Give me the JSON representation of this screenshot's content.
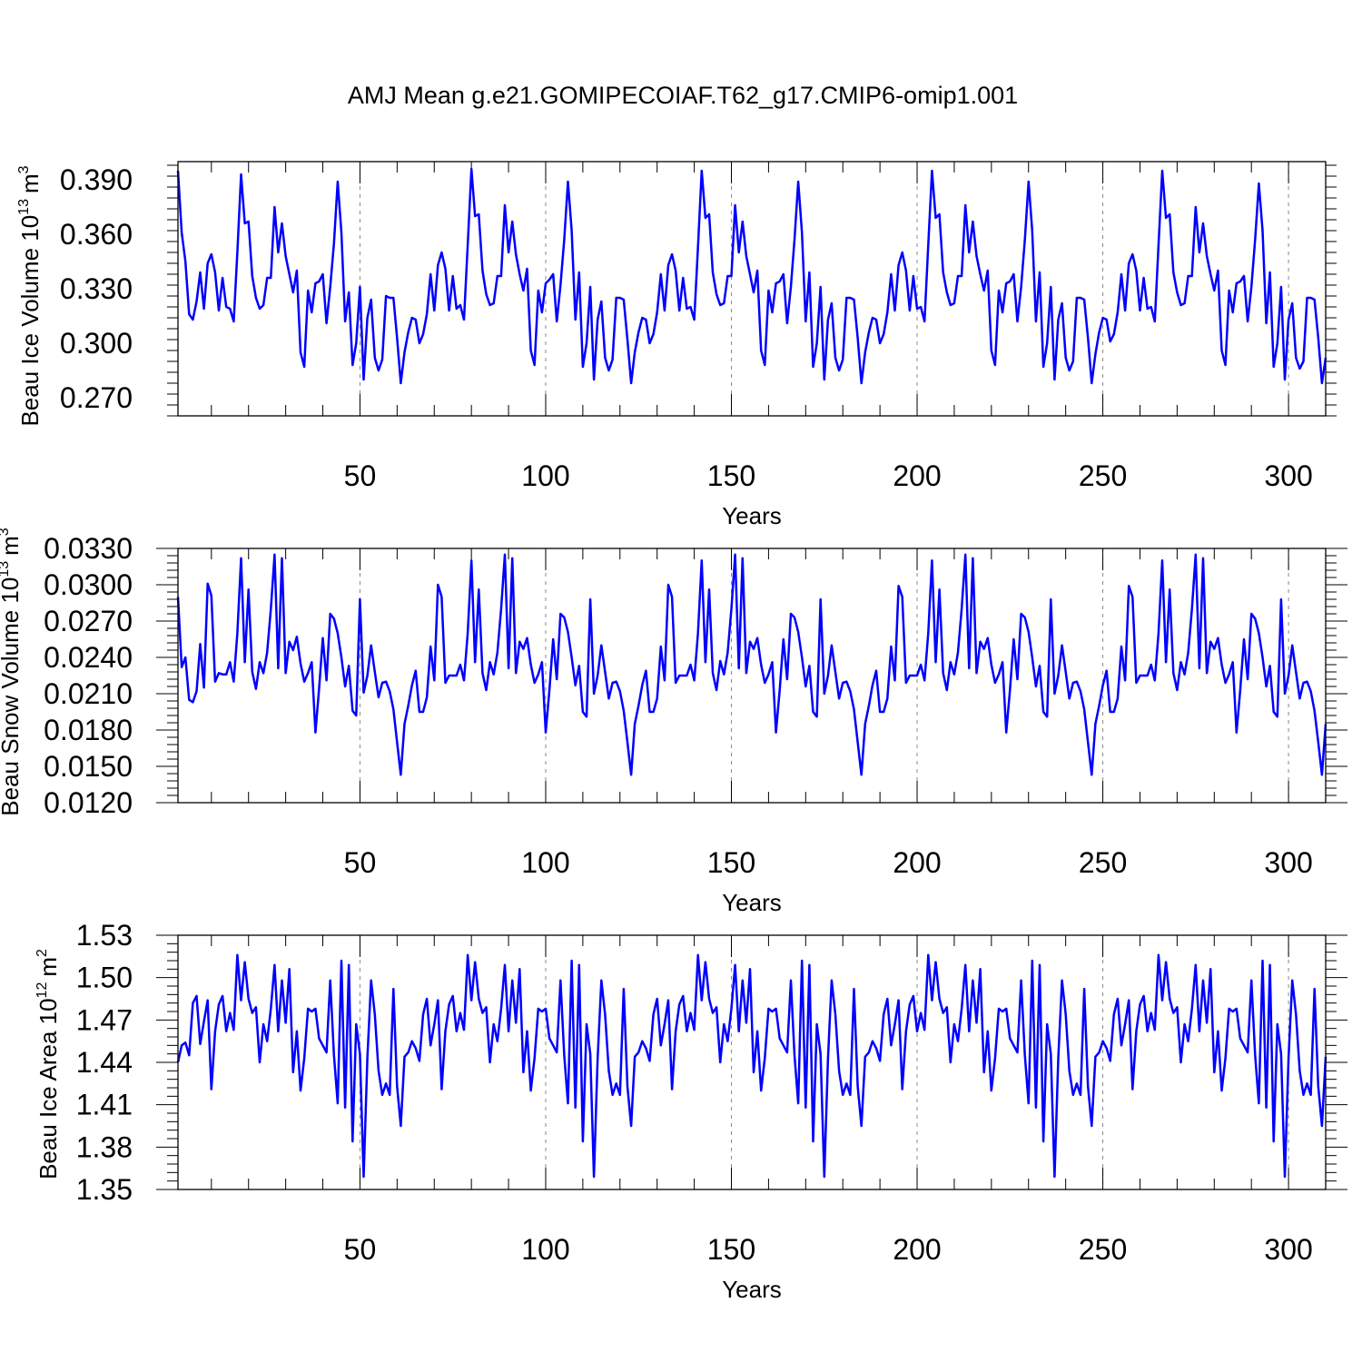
{
  "title": "AMJ Mean g.e21.GOMIPECOIAF.T62_g17.CMIP6-omip1.001",
  "line_color": "#0000ff",
  "chart_data": [
    {
      "type": "line",
      "ylabel": "Beau Ice Volume 10",
      "ylabel_sup": "13",
      "ylabel_unit": "m",
      "ylabel_unit_sup": "3",
      "xlabel": "Years",
      "xlim": [
        1,
        310
      ],
      "ylim": [
        0.26,
        0.4
      ],
      "xticks": [
        "50",
        "100",
        "150",
        "200",
        "250",
        "300"
      ],
      "yticks": [
        "0.390",
        "0.360",
        "0.330",
        "0.300",
        "0.270"
      ],
      "grid": "dashed vertical at major x ticks",
      "series": [
        {
          "values": [
            0.395,
            0.361,
            0.345,
            0.316,
            0.313,
            0.323,
            0.339,
            0.319,
            0.344,
            0.349,
            0.339,
            0.318,
            0.336,
            0.32,
            0.319,
            0.312,
            0.35,
            0.393,
            0.366,
            0.367,
            0.337,
            0.325,
            0.319,
            0.321,
            0.336,
            0.336,
            0.375,
            0.35,
            0.366,
            0.348,
            0.338,
            0.328,
            0.34,
            0.295,
            0.287,
            0.329,
            0.317,
            0.333,
            0.334,
            0.338,
            0.311,
            0.331,
            0.355,
            0.389,
            0.361,
            0.312,
            0.328,
            0.288,
            0.3,
            0.331,
            0.28,
            0.314,
            0.324,
            0.292,
            0.285,
            0.291,
            0.326,
            0.325,
            0.325,
            0.303,
            0.278,
            0.295,
            0.306,
            0.314,
            0.313,
            0.3,
            0.305,
            0.316,
            0.338,
            0.318,
            0.343,
            0.35,
            0.341,
            0.318,
            0.337,
            0.319,
            0.321,
            0.313,
            0.354,
            0.396,
            0.37,
            0.371,
            0.34,
            0.327,
            0.321,
            0.322,
            0.337,
            0.337,
            0.376,
            0.35,
            0.367,
            0.349,
            0.338,
            0.329,
            0.341,
            0.296,
            0.288,
            0.329,
            0.317,
            0.333,
            0.335,
            0.338,
            0.312,
            0.332,
            0.357,
            0.389,
            0.362,
            0.313,
            0.339,
            0.287,
            0.3,
            0.331,
            0.28,
            0.313,
            0.323,
            0.292,
            0.285,
            0.291,
            0.325,
            0.325,
            0.324,
            0.302,
            0.278,
            0.295,
            0.306,
            0.314,
            0.313,
            0.3,
            0.305,
            0.317,
            0.338,
            0.318,
            0.343,
            0.349,
            0.34,
            0.318,
            0.336,
            0.319,
            0.32,
            0.313,
            0.353,
            0.395,
            0.369,
            0.371,
            0.339,
            0.327,
            0.321,
            0.322,
            0.337,
            0.337,
            0.376,
            0.35,
            0.367,
            0.348,
            0.338,
            0.328,
            0.34,
            0.296,
            0.288,
            0.329,
            0.317,
            0.333,
            0.334,
            0.338,
            0.311,
            0.331,
            0.357,
            0.389,
            0.361,
            0.312,
            0.339,
            0.287,
            0.3,
            0.331,
            0.28,
            0.313,
            0.322,
            0.292,
            0.285,
            0.291,
            0.325,
            0.325,
            0.324,
            0.303,
            0.278,
            0.295,
            0.306,
            0.314,
            0.313,
            0.3,
            0.305,
            0.317,
            0.338,
            0.318,
            0.343,
            0.35,
            0.34,
            0.318,
            0.337,
            0.319,
            0.32,
            0.312,
            0.354,
            0.395,
            0.369,
            0.371,
            0.339,
            0.328,
            0.321,
            0.322,
            0.337,
            0.337,
            0.376,
            0.35,
            0.367,
            0.348,
            0.338,
            0.329,
            0.34,
            0.296,
            0.288,
            0.329,
            0.317,
            0.333,
            0.334,
            0.338,
            0.312,
            0.331,
            0.357,
            0.389,
            0.362,
            0.312,
            0.339,
            0.287,
            0.3,
            0.331,
            0.28,
            0.313,
            0.322,
            0.292,
            0.285,
            0.29,
            0.325,
            0.325,
            0.324,
            0.303,
            0.278,
            0.294,
            0.306,
            0.314,
            0.313,
            0.301,
            0.305,
            0.317,
            0.338,
            0.318,
            0.344,
            0.349,
            0.34,
            0.318,
            0.336,
            0.319,
            0.32,
            0.312,
            0.354,
            0.395,
            0.369,
            0.371,
            0.339,
            0.328,
            0.321,
            0.322,
            0.337,
            0.337,
            0.375,
            0.35,
            0.366,
            0.348,
            0.338,
            0.329,
            0.34,
            0.296,
            0.288,
            0.329,
            0.317,
            0.333,
            0.334,
            0.337,
            0.312,
            0.331,
            0.357,
            0.388,
            0.362,
            0.311,
            0.339,
            0.287,
            0.3,
            0.331,
            0.28,
            0.313,
            0.322,
            0.292,
            0.286,
            0.29,
            0.325,
            0.325,
            0.324,
            0.303,
            0.278,
            0.292
          ]
        }
      ]
    },
    {
      "type": "line",
      "ylabel": "Beau Snow Volume 10",
      "ylabel_sup": "13",
      "ylabel_unit": "m",
      "ylabel_unit_sup": "3",
      "xlabel": "Years",
      "xlim": [
        1,
        310
      ],
      "ylim": [
        0.012,
        0.033
      ],
      "xticks": [
        "50",
        "100",
        "150",
        "200",
        "250",
        "300"
      ],
      "yticks": [
        "0.0330",
        "0.0300",
        "0.0270",
        "0.0240",
        "0.0210",
        "0.0180",
        "0.0150",
        "0.0120"
      ],
      "grid": "dashed vertical at major x ticks",
      "series": [
        {
          "values": [
            0.029,
            0.0232,
            0.024,
            0.0205,
            0.0203,
            0.0212,
            0.0251,
            0.0215,
            0.0301,
            0.0291,
            0.022,
            0.0227,
            0.0226,
            0.0226,
            0.0236,
            0.022,
            0.026,
            0.0322,
            0.0236,
            0.0296,
            0.0228,
            0.0214,
            0.0236,
            0.0227,
            0.0244,
            0.028,
            0.0325,
            0.0231,
            0.0322,
            0.0227,
            0.0253,
            0.0246,
            0.0257,
            0.0235,
            0.022,
            0.0227,
            0.0236,
            0.0178,
            0.0214,
            0.0256,
            0.0221,
            0.0276,
            0.0272,
            0.026,
            0.024,
            0.0216,
            0.0233,
            0.0196,
            0.0192,
            0.0288,
            0.0211,
            0.0225,
            0.025,
            0.0228,
            0.0207,
            0.0219,
            0.022,
            0.0212,
            0.0197,
            0.017,
            0.0143,
            0.0185,
            0.02,
            0.0217,
            0.0229,
            0.0195,
            0.0195,
            0.0207,
            0.0249,
            0.0221,
            0.03,
            0.029,
            0.0219,
            0.0225,
            0.0225,
            0.0225,
            0.0234,
            0.0221,
            0.026,
            0.032,
            0.0236,
            0.0296,
            0.0227,
            0.0213,
            0.0236,
            0.0226,
            0.0244,
            0.028,
            0.0325,
            0.0231,
            0.0322,
            0.0227,
            0.0253,
            0.0247,
            0.0256,
            0.0234,
            0.0219,
            0.0226,
            0.0236,
            0.0178,
            0.0213,
            0.0255,
            0.0222,
            0.0276,
            0.0273,
            0.0261,
            0.024,
            0.0217,
            0.0233,
            0.0195,
            0.0191,
            0.0288,
            0.021,
            0.0225,
            0.025,
            0.0228,
            0.0206,
            0.0219,
            0.022,
            0.0212,
            0.0196,
            0.017,
            0.0143,
            0.0185,
            0.02,
            0.0217,
            0.0229,
            0.0195,
            0.0195,
            0.0206,
            0.0249,
            0.0221,
            0.03,
            0.029,
            0.0219,
            0.0225,
            0.0225,
            0.0225,
            0.0234,
            0.0221,
            0.026,
            0.032,
            0.0236,
            0.0296,
            0.0227,
            0.0213,
            0.0237,
            0.0226,
            0.0244,
            0.028,
            0.0325,
            0.0231,
            0.0322,
            0.0227,
            0.0253,
            0.0247,
            0.0256,
            0.0234,
            0.0219,
            0.0226,
            0.0236,
            0.0178,
            0.0213,
            0.0255,
            0.0222,
            0.0276,
            0.0273,
            0.0261,
            0.024,
            0.0216,
            0.0233,
            0.0195,
            0.0191,
            0.0288,
            0.021,
            0.0225,
            0.025,
            0.0228,
            0.0206,
            0.0219,
            0.022,
            0.0212,
            0.0197,
            0.017,
            0.0143,
            0.0185,
            0.02,
            0.0217,
            0.0229,
            0.0195,
            0.0195,
            0.0206,
            0.0249,
            0.0221,
            0.0299,
            0.029,
            0.0219,
            0.0225,
            0.0225,
            0.0225,
            0.0234,
            0.0221,
            0.026,
            0.032,
            0.0236,
            0.0296,
            0.0227,
            0.0213,
            0.0236,
            0.0226,
            0.0244,
            0.028,
            0.0325,
            0.0231,
            0.0322,
            0.0227,
            0.0253,
            0.0247,
            0.0256,
            0.0234,
            0.0219,
            0.0226,
            0.0236,
            0.0178,
            0.0213,
            0.0255,
            0.0222,
            0.0276,
            0.0273,
            0.0261,
            0.024,
            0.0216,
            0.0233,
            0.0195,
            0.0191,
            0.0288,
            0.021,
            0.0225,
            0.025,
            0.0228,
            0.0206,
            0.0219,
            0.022,
            0.0212,
            0.0197,
            0.017,
            0.0143,
            0.0185,
            0.02,
            0.0217,
            0.0229,
            0.0195,
            0.0195,
            0.0206,
            0.0249,
            0.0221,
            0.0299,
            0.029,
            0.0219,
            0.0225,
            0.0225,
            0.0225,
            0.0234,
            0.0221,
            0.026,
            0.032,
            0.0236,
            0.0296,
            0.0227,
            0.0213,
            0.0236,
            0.0226,
            0.0244,
            0.028,
            0.0325,
            0.0231,
            0.0322,
            0.0227,
            0.0253,
            0.0247,
            0.0256,
            0.0234,
            0.0219,
            0.0226,
            0.0236,
            0.0178,
            0.0213,
            0.0255,
            0.0222,
            0.0276,
            0.0272,
            0.026,
            0.024,
            0.0216,
            0.0233,
            0.0195,
            0.0191,
            0.0288,
            0.021,
            0.0225,
            0.025,
            0.0228,
            0.0206,
            0.0219,
            0.022,
            0.0212,
            0.0196,
            0.017,
            0.0143,
            0.0185
          ]
        }
      ]
    },
    {
      "type": "line",
      "ylabel": "Beau Ice Area 10",
      "ylabel_sup": "12",
      "ylabel_unit": "m",
      "ylabel_unit_sup": "2",
      "xlabel": "Years",
      "xlim": [
        1,
        310
      ],
      "ylim": [
        1.35,
        1.53
      ],
      "xticks": [
        "50",
        "100",
        "150",
        "200",
        "250",
        "300"
      ],
      "yticks": [
        "1.53",
        "1.50",
        "1.47",
        "1.44",
        "1.41",
        "1.38",
        "1.35"
      ],
      "grid": "dashed vertical at major x ticks",
      "series": [
        {
          "values": [
            1.44,
            1.452,
            1.454,
            1.445,
            1.482,
            1.487,
            1.453,
            1.469,
            1.484,
            1.421,
            1.462,
            1.481,
            1.487,
            1.462,
            1.475,
            1.463,
            1.516,
            1.484,
            1.511,
            1.485,
            1.475,
            1.479,
            1.44,
            1.467,
            1.455,
            1.478,
            1.509,
            1.462,
            1.498,
            1.468,
            1.506,
            1.433,
            1.462,
            1.42,
            1.443,
            1.478,
            1.476,
            1.478,
            1.457,
            1.452,
            1.447,
            1.498,
            1.445,
            1.411,
            1.512,
            1.408,
            1.509,
            1.384,
            1.467,
            1.446,
            1.359,
            1.443,
            1.498,
            1.474,
            1.434,
            1.417,
            1.425,
            1.417,
            1.492,
            1.423,
            1.395,
            1.444,
            1.447,
            1.455,
            1.45,
            1.441,
            1.474,
            1.485,
            1.452,
            1.467,
            1.484,
            1.421,
            1.462,
            1.481,
            1.487,
            1.462,
            1.475,
            1.463,
            1.516,
            1.484,
            1.511,
            1.485,
            1.475,
            1.479,
            1.44,
            1.467,
            1.455,
            1.478,
            1.509,
            1.462,
            1.498,
            1.468,
            1.506,
            1.433,
            1.462,
            1.42,
            1.443,
            1.478,
            1.476,
            1.478,
            1.457,
            1.452,
            1.447,
            1.498,
            1.445,
            1.411,
            1.512,
            1.408,
            1.509,
            1.384,
            1.467,
            1.446,
            1.359,
            1.443,
            1.498,
            1.474,
            1.434,
            1.417,
            1.425,
            1.417,
            1.492,
            1.423,
            1.395,
            1.444,
            1.447,
            1.455,
            1.45,
            1.441,
            1.474,
            1.485,
            1.452,
            1.467,
            1.484,
            1.421,
            1.462,
            1.481,
            1.487,
            1.462,
            1.475,
            1.463,
            1.516,
            1.484,
            1.511,
            1.485,
            1.475,
            1.479,
            1.44,
            1.467,
            1.455,
            1.478,
            1.509,
            1.462,
            1.498,
            1.468,
            1.506,
            1.433,
            1.462,
            1.42,
            1.443,
            1.478,
            1.476,
            1.478,
            1.457,
            1.452,
            1.447,
            1.498,
            1.445,
            1.411,
            1.512,
            1.408,
            1.509,
            1.384,
            1.467,
            1.446,
            1.359,
            1.443,
            1.498,
            1.474,
            1.434,
            1.417,
            1.425,
            1.417,
            1.492,
            1.423,
            1.395,
            1.444,
            1.447,
            1.455,
            1.45,
            1.441,
            1.474,
            1.485,
            1.452,
            1.467,
            1.484,
            1.421,
            1.462,
            1.481,
            1.487,
            1.462,
            1.475,
            1.463,
            1.516,
            1.484,
            1.511,
            1.485,
            1.475,
            1.479,
            1.44,
            1.467,
            1.455,
            1.478,
            1.509,
            1.462,
            1.498,
            1.468,
            1.506,
            1.433,
            1.462,
            1.42,
            1.443,
            1.478,
            1.476,
            1.478,
            1.457,
            1.452,
            1.447,
            1.498,
            1.445,
            1.411,
            1.512,
            1.408,
            1.509,
            1.384,
            1.467,
            1.446,
            1.359,
            1.443,
            1.498,
            1.474,
            1.434,
            1.417,
            1.425,
            1.417,
            1.492,
            1.423,
            1.395,
            1.444,
            1.447,
            1.455,
            1.45,
            1.441,
            1.474,
            1.485,
            1.452,
            1.467,
            1.484,
            1.421,
            1.462,
            1.481,
            1.487,
            1.462,
            1.475,
            1.463,
            1.516,
            1.484,
            1.511,
            1.485,
            1.475,
            1.479,
            1.44,
            1.467,
            1.455,
            1.478,
            1.509,
            1.462,
            1.498,
            1.468,
            1.506,
            1.433,
            1.462,
            1.42,
            1.443,
            1.478,
            1.476,
            1.478,
            1.457,
            1.452,
            1.447,
            1.498,
            1.445,
            1.411,
            1.512,
            1.408,
            1.509,
            1.384,
            1.467,
            1.446,
            1.359,
            1.443,
            1.498,
            1.474,
            1.434,
            1.417,
            1.425,
            1.417,
            1.492,
            1.423,
            1.395,
            1.444
          ]
        }
      ]
    }
  ]
}
